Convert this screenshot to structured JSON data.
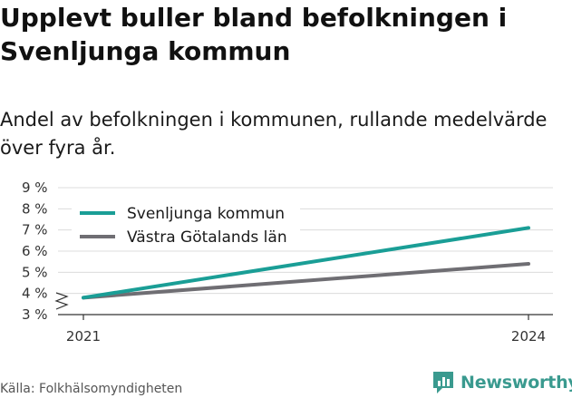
{
  "title": "Upplevt buller bland befolkningen i Svenljunga kommun",
  "subtitle": "Andel av befolkningen i kommunen, rullande medelvärde över fyra år.",
  "source": "Källa: Folkhälsomyndigheten",
  "brand": {
    "name": "Newsworthy",
    "logo_icon": "newsworthy-chart-icon"
  },
  "colors": {
    "series1": "#1a9e96",
    "series2": "#6f6e73",
    "grid": "#dcdcdc",
    "axis": "#333333",
    "brand": "#3a9a8f"
  },
  "chart_data": {
    "type": "line",
    "x": [
      2021,
      2024
    ],
    "x_tick_labels": [
      "2021",
      "2024"
    ],
    "y_unit": "%",
    "ylim": [
      3,
      9
    ],
    "y_ticks": [
      3,
      4,
      5,
      6,
      7,
      8,
      9
    ],
    "y_tick_labels": [
      "3 %",
      "4 %",
      "5 %",
      "6 %",
      "7 %",
      "8 %",
      "9 %"
    ],
    "axis_break": true,
    "grid": true,
    "legend_position": "top-left",
    "series": [
      {
        "name": "Svenljunga kommun",
        "values": [
          3.8,
          7.1
        ],
        "color": "#1a9e96"
      },
      {
        "name": "Västra Götalands län",
        "values": [
          3.8,
          5.4
        ],
        "color": "#6f6e73"
      }
    ]
  }
}
